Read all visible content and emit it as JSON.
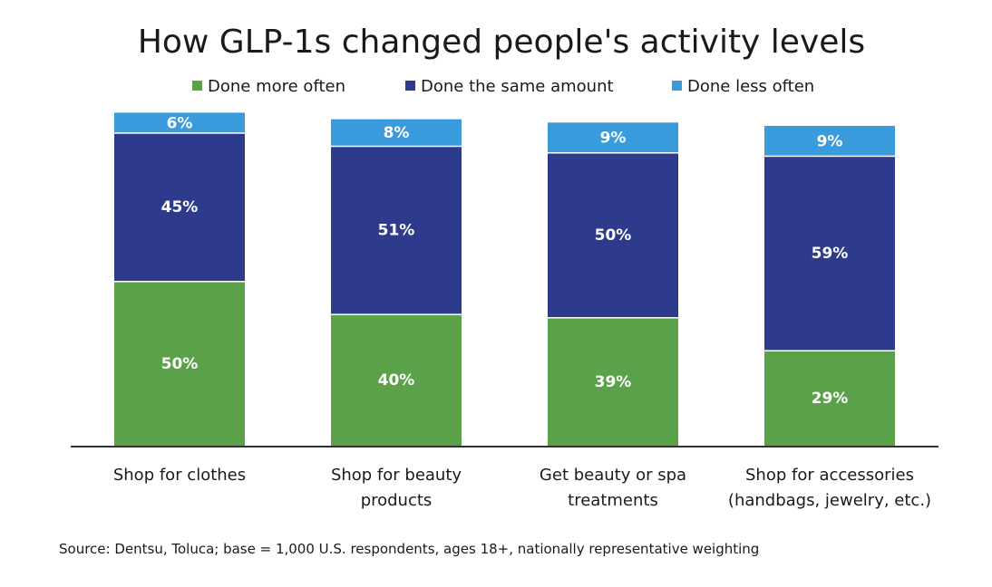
{
  "chart_data": {
    "type": "bar",
    "stacked": true,
    "title": "How GLP-1s changed people's activity levels",
    "categories": [
      [
        "Shop for clothes"
      ],
      [
        "Shop for beauty",
        "products"
      ],
      [
        "Get beauty or spa",
        "treatments"
      ],
      [
        "Shop for accessories",
        "(handbags, jewelry, etc.)"
      ]
    ],
    "series": [
      {
        "name": "Done more often",
        "color": "#5BA14A",
        "values": [
          50,
          40,
          39,
          29
        ]
      },
      {
        "name": "Done the same amount",
        "color": "#2E3A8C",
        "values": [
          45,
          51,
          50,
          59
        ]
      },
      {
        "name": "Done less often",
        "color": "#3A9BDC",
        "values": [
          6,
          8,
          9,
          9
        ]
      }
    ],
    "value_suffix": "%",
    "xlabel": "",
    "ylabel": "",
    "ylim": [
      0,
      101
    ],
    "legend_position": "top",
    "grid": false
  },
  "source": "Source: Dentsu, Toluca; base = 1,000 U.S. respondents, ages 18+, nationally representative weighting"
}
